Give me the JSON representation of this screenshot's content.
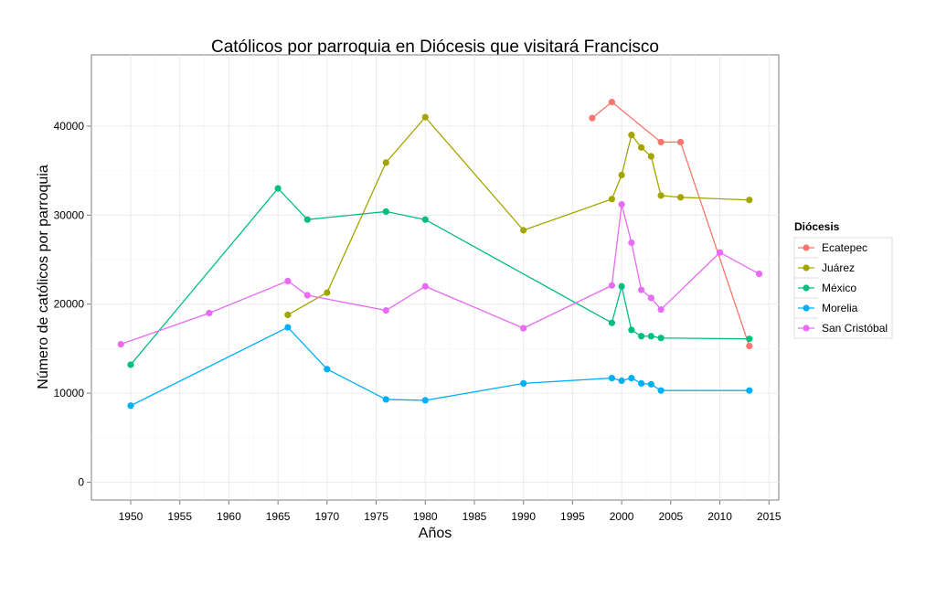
{
  "chart_data": {
    "type": "line",
    "title": "Católicos por parroquia en Diócesis que visitará Francisco",
    "xlabel": "Años",
    "ylabel": "Número de católicos por parroquia",
    "xlim": [
      1946,
      2016
    ],
    "ylim": [
      -2000,
      48000
    ],
    "x_ticks": [
      1950,
      1955,
      1960,
      1965,
      1970,
      1975,
      1980,
      1985,
      1990,
      1995,
      2000,
      2005,
      2010,
      2015
    ],
    "y_ticks": [
      0,
      10000,
      20000,
      30000,
      40000
    ],
    "grid": true,
    "legend_title": "Diócesis",
    "legend_position": "right",
    "series": [
      {
        "name": "Ecatepec",
        "color": "#f8766d",
        "points": [
          [
            1997,
            40900
          ],
          [
            1999,
            42700
          ],
          [
            2004,
            38200
          ],
          [
            2006,
            38200
          ],
          [
            2013,
            15300
          ]
        ]
      },
      {
        "name": "Juárez",
        "color": "#a3a500",
        "points": [
          [
            1966,
            18800
          ],
          [
            1970,
            21300
          ],
          [
            1976,
            35900
          ],
          [
            1980,
            41000
          ],
          [
            1990,
            28300
          ],
          [
            1999,
            31800
          ],
          [
            2000,
            34500
          ],
          [
            2001,
            39000
          ],
          [
            2002,
            37600
          ],
          [
            2003,
            36600
          ],
          [
            2004,
            32200
          ],
          [
            2006,
            32000
          ],
          [
            2013,
            31700
          ]
        ]
      },
      {
        "name": "México",
        "color": "#00bf7d",
        "points": [
          [
            1950,
            13200
          ],
          [
            1965,
            33000
          ],
          [
            1968,
            29500
          ],
          [
            1976,
            30400
          ],
          [
            1980,
            29500
          ],
          [
            1999,
            17900
          ],
          [
            2000,
            22000
          ],
          [
            2001,
            17100
          ],
          [
            2002,
            16400
          ],
          [
            2003,
            16400
          ],
          [
            2004,
            16200
          ],
          [
            2013,
            16100
          ]
        ]
      },
      {
        "name": "Morelia",
        "color": "#00b0f6",
        "points": [
          [
            1950,
            8600
          ],
          [
            1966,
            17400
          ],
          [
            1970,
            12700
          ],
          [
            1976,
            9300
          ],
          [
            1980,
            9200
          ],
          [
            1990,
            11100
          ],
          [
            1999,
            11700
          ],
          [
            2000,
            11400
          ],
          [
            2001,
            11700
          ],
          [
            2002,
            11100
          ],
          [
            2003,
            11000
          ],
          [
            2004,
            10300
          ],
          [
            2013,
            10300
          ]
        ]
      },
      {
        "name": "San Cristóbal",
        "color": "#e76bf3",
        "points": [
          [
            1949,
            15500
          ],
          [
            1958,
            19000
          ],
          [
            1966,
            22600
          ],
          [
            1968,
            21000
          ],
          [
            1976,
            19300
          ],
          [
            1980,
            22000
          ],
          [
            1990,
            17300
          ],
          [
            1999,
            22100
          ],
          [
            2000,
            31200
          ],
          [
            2001,
            26900
          ],
          [
            2002,
            21600
          ],
          [
            2003,
            20700
          ],
          [
            2004,
            19400
          ],
          [
            2010,
            25800
          ],
          [
            2014,
            23400
          ]
        ]
      }
    ]
  }
}
